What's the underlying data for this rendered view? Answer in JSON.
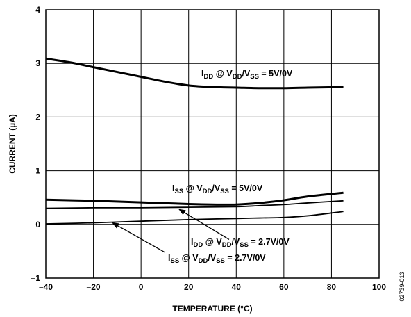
{
  "chart_data": {
    "type": "line",
    "xlabel": "TEMPERATURE (°C)",
    "ylabel": "CURRENT (µA)",
    "xlim": [
      -40,
      100
    ],
    "ylim": [
      -1,
      4
    ],
    "xticks": [
      "–40",
      "–20",
      "0",
      "20",
      "40",
      "60",
      "80",
      "100"
    ],
    "yticks": [
      "–1",
      "0",
      "1",
      "2",
      "3",
      "4"
    ],
    "grid": true,
    "series": [
      {
        "name": "IDD @ VDD/VSS = 5V/0V",
        "label_parts": {
          "main": "I",
          "sub1": "DD",
          "at": " @ V",
          "sub2": "DD",
          "slash": "/V",
          "sub3": "SS",
          "rest": " = 5V/0V"
        },
        "stroke_width": 3,
        "x": [
          -40,
          -30,
          -20,
          -10,
          0,
          10,
          20,
          30,
          40,
          50,
          60,
          70,
          85
        ],
        "y": [
          3.09,
          3.02,
          2.93,
          2.84,
          2.75,
          2.66,
          2.59,
          2.56,
          2.55,
          2.54,
          2.54,
          2.55,
          2.56
        ]
      },
      {
        "name": "ISS @ VDD/VSS = 5V/0V",
        "label_parts": {
          "main": "I",
          "sub1": "SS",
          "at": " @ V",
          "sub2": "DD",
          "slash": "/V",
          "sub3": "SS",
          "rest": " = 5V/0V"
        },
        "stroke_width": 3,
        "x": [
          -40,
          -20,
          0,
          20,
          30,
          40,
          50,
          60,
          70,
          85
        ],
        "y": [
          0.46,
          0.44,
          0.41,
          0.38,
          0.37,
          0.37,
          0.4,
          0.45,
          0.52,
          0.59
        ]
      },
      {
        "name": "IDD @ VDD/VSS = 2.7V/0V",
        "label_parts": {
          "main": "I",
          "sub1": "DD",
          "at": " @ V",
          "sub2": "DD",
          "slash": "/V",
          "sub3": "SS",
          "rest": " = 2.7V/0V"
        },
        "stroke_width": 1.8,
        "x": [
          -40,
          -20,
          0,
          20,
          40,
          50,
          60,
          70,
          85
        ],
        "y": [
          0.3,
          0.31,
          0.31,
          0.32,
          0.33,
          0.35,
          0.37,
          0.4,
          0.44
        ]
      },
      {
        "name": "ISS @ VDD/VSS = 2.7V/0V",
        "label_parts": {
          "main": "I",
          "sub1": "SS",
          "at": " @ V",
          "sub2": "DD",
          "slash": "/V",
          "sub3": "SS",
          "rest": " = 2.7V/0V"
        },
        "stroke_width": 1.8,
        "x": [
          -40,
          -20,
          0,
          20,
          40,
          50,
          60,
          70,
          85
        ],
        "y": [
          0.01,
          0.03,
          0.06,
          0.09,
          0.11,
          0.12,
          0.13,
          0.16,
          0.24
        ]
      }
    ],
    "annotations": [
      {
        "series_index": 0,
        "arrow": null
      },
      {
        "series_index": 1,
        "arrow": null
      },
      {
        "series_index": 2,
        "arrow": {
          "from": [
            37,
            -0.28
          ],
          "to": [
            16,
            0.28
          ]
        }
      },
      {
        "series_index": 3,
        "arrow": {
          "from": [
            10,
            -0.52
          ],
          "to": [
            -12,
            0.03
          ]
        }
      }
    ],
    "figure_id": "02739-013"
  }
}
